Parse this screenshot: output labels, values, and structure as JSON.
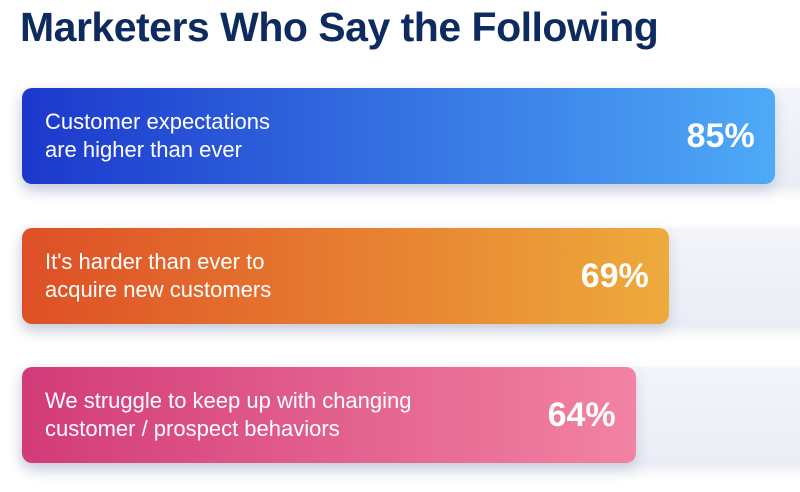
{
  "chart_data": {
    "type": "bar",
    "title": "Marketers Who Say the Following",
    "categories": [
      [
        "Customer expectations",
        "are higher than ever"
      ],
      [
        "It's harder than ever to",
        "acquire new customers"
      ],
      [
        "We struggle to keep up with changing",
        "customer / prospect behaviors"
      ]
    ],
    "values": [
      85,
      69,
      64
    ],
    "value_labels": [
      "85%",
      "69%",
      "64%"
    ],
    "colors": [
      [
        "#1c38cc",
        "#4eaaf7"
      ],
      [
        "#de4f26",
        "#eeaa3c"
      ],
      [
        "#d23b78",
        "#f283a3"
      ]
    ]
  }
}
